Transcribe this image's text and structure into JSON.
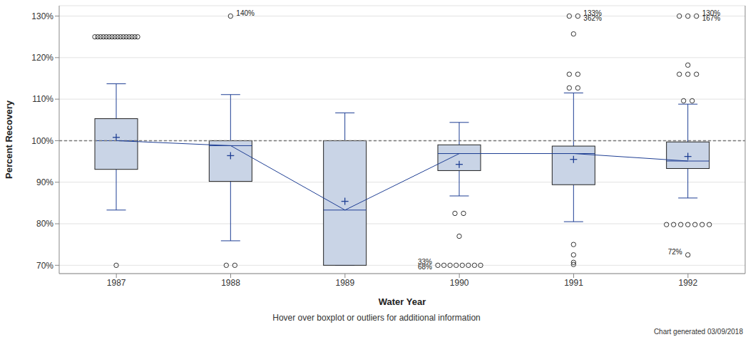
{
  "chart_data": {
    "type": "boxplot",
    "x_label": "Water Year",
    "y_label": "Percent Recovery",
    "footer": "Hover over boxplot or outliers for additional information",
    "note": "Chart generated 03/09/2018",
    "categories": [
      "1987",
      "1988",
      "1989",
      "1990",
      "1991",
      "1992"
    ],
    "boxes": [
      {
        "low": 83.3,
        "q1": 93.1,
        "median": 100,
        "q3": 105.3,
        "high": 113.7,
        "mean": 100.8,
        "outliers": [
          125,
          125,
          125,
          125,
          125,
          125,
          125,
          125,
          125,
          125,
          125,
          125,
          125,
          125,
          125,
          125,
          70
        ]
      },
      {
        "low": 75.9,
        "q1": 90.2,
        "median": 98.8,
        "q3": 100,
        "high": 111.1,
        "mean": 96.4,
        "outliers": [
          130,
          70,
          70
        ]
      },
      {
        "low": 70,
        "q1": 70,
        "median": 83.3,
        "q3": 100,
        "high": 106.7,
        "mean": 85.4,
        "outliers": []
      },
      {
        "low": 86.7,
        "q1": 92.8,
        "median": 96.9,
        "q3": 99,
        "high": 104.4,
        "mean": 94.3,
        "outliers": [
          82.5,
          82.5,
          77,
          70,
          70,
          70,
          70,
          70,
          70,
          70,
          70
        ]
      },
      {
        "low": 80.5,
        "q1": 89.4,
        "median": 96.9,
        "q3": 98.7,
        "high": 111.5,
        "mean": 95.5,
        "outliers": [
          130,
          130,
          125.7,
          116,
          116,
          112.7,
          112.7,
          75,
          72.5,
          70.7,
          70.2
        ]
      },
      {
        "low": 86.2,
        "q1": 93.3,
        "median": 95.1,
        "q3": 99.7,
        "high": 108.8,
        "mean": 96.2,
        "outliers": [
          130,
          130,
          130,
          118.2,
          116,
          116,
          116,
          109.6,
          109.6,
          79.8,
          79.8,
          79.8,
          79.8,
          79.8,
          79.8,
          79.8,
          72.5
        ]
      }
    ],
    "annotations": [
      {
        "category": "1988",
        "value": 130,
        "text": "140%"
      },
      {
        "category": "1990",
        "value": 70,
        "text": "33%"
      },
      {
        "category": "1990",
        "value": 70,
        "text": "68%"
      },
      {
        "category": "1991",
        "value": 130,
        "text": "133%"
      },
      {
        "category": "1991",
        "value": 130,
        "text": "362%"
      },
      {
        "category": "1992",
        "value": 130,
        "text": "130%"
      },
      {
        "category": "1992",
        "value": 130,
        "text": "167%"
      },
      {
        "category": "1992",
        "value": 72.5,
        "text": "72%"
      }
    ],
    "color": "#c9d4e6",
    "reference_line": 100,
    "ylim": [
      68,
      132.5
    ],
    "yticks": [
      {
        "value": 70,
        "label": "70%"
      },
      {
        "value": 80,
        "label": "80%"
      },
      {
        "value": 90,
        "label": "90%"
      },
      {
        "value": 100,
        "label": "100%"
      },
      {
        "value": 110,
        "label": "110%"
      },
      {
        "value": 120,
        "label": "120%"
      },
      {
        "value": 130,
        "label": "130%"
      }
    ],
    "grid": true
  }
}
